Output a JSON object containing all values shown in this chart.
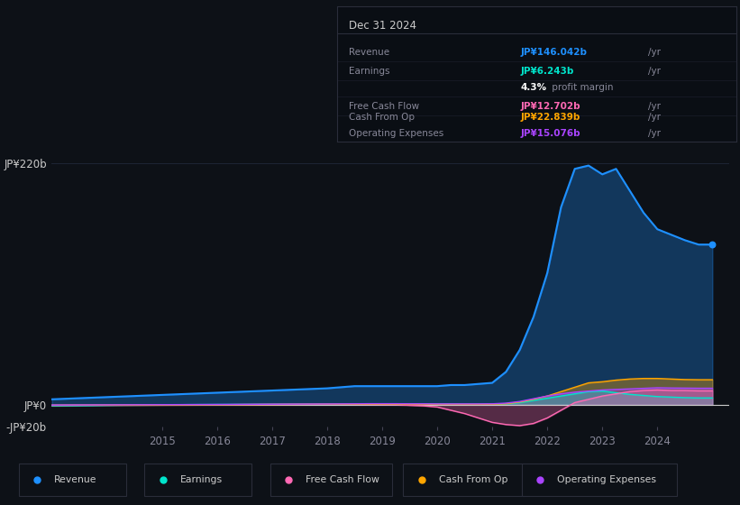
{
  "background_color": "#0d1117",
  "plot_bg_color": "#0d1117",
  "title_box": {
    "date": "Dec 31 2024",
    "rows": [
      {
        "label": "Revenue",
        "value": "JP¥146.042b",
        "unit": "/yr",
        "value_color": "#1e90ff"
      },
      {
        "label": "Earnings",
        "value": "JP¥6.243b",
        "unit": "/yr",
        "value_color": "#00e5cc"
      },
      {
        "label": "",
        "value": "4.3%",
        "unit": "profit margin",
        "value_color": "#ffffff"
      },
      {
        "label": "Free Cash Flow",
        "value": "JP¥12.702b",
        "unit": "/yr",
        "value_color": "#ff69b4"
      },
      {
        "label": "Cash From Op",
        "value": "JP¥22.839b",
        "unit": "/yr",
        "value_color": "#ffa500"
      },
      {
        "label": "Operating Expenses",
        "value": "JP¥15.076b",
        "unit": "/yr",
        "value_color": "#aa44ff"
      }
    ]
  },
  "years": [
    2013.0,
    2013.5,
    2014.0,
    2014.5,
    2015.0,
    2015.5,
    2016.0,
    2016.5,
    2017.0,
    2017.5,
    2018.0,
    2018.25,
    2018.5,
    2018.75,
    2019.0,
    2019.25,
    2019.5,
    2019.75,
    2020.0,
    2020.25,
    2020.5,
    2020.75,
    2021.0,
    2021.25,
    2021.5,
    2021.75,
    2022.0,
    2022.25,
    2022.5,
    2022.75,
    2023.0,
    2023.25,
    2023.5,
    2023.75,
    2024.0,
    2024.25,
    2024.5,
    2024.75,
    2025.0
  ],
  "revenue": [
    5,
    6,
    7,
    8,
    9,
    10,
    11,
    12,
    13,
    14,
    15,
    16,
    17,
    17,
    17,
    17,
    17,
    17,
    17,
    18,
    18,
    19,
    20,
    30,
    50,
    80,
    120,
    180,
    215,
    218,
    210,
    215,
    195,
    175,
    160,
    155,
    150,
    146,
    146
  ],
  "earnings": [
    -1,
    -0.8,
    -0.5,
    -0.3,
    0,
    0.2,
    0.3,
    0.4,
    0.5,
    0.6,
    0.7,
    0.7,
    0.7,
    0.8,
    0.8,
    0.8,
    0.8,
    0.8,
    0.7,
    0.7,
    0.6,
    0.6,
    0.7,
    1.0,
    2.0,
    4.0,
    6.0,
    8.0,
    10.0,
    12.0,
    12.5,
    11.0,
    9.5,
    8.5,
    7.5,
    7.0,
    6.5,
    6.243,
    6.243
  ],
  "free_cash_flow": [
    -0.5,
    -0.4,
    -0.3,
    -0.2,
    -0.1,
    0,
    0.1,
    0.2,
    0.3,
    0.4,
    0.5,
    0.5,
    0.4,
    0.3,
    0.2,
    0.1,
    -0.5,
    -1.0,
    -2,
    -5,
    -8,
    -12,
    -16,
    -18,
    -19,
    -17,
    -12,
    -5,
    2,
    5,
    8,
    10,
    12,
    13,
    13.5,
    13,
    13,
    12.702,
    12.702
  ],
  "cash_from_op": [
    -0.5,
    -0.4,
    -0.3,
    -0.2,
    -0.1,
    0,
    0.1,
    0.2,
    0.3,
    0.4,
    0.5,
    0.5,
    0.5,
    0.5,
    0.5,
    0.5,
    0.4,
    0.4,
    0.4,
    0.4,
    0.4,
    0.4,
    0.5,
    1.0,
    2.5,
    5.0,
    8.0,
    12.0,
    16.0,
    20.0,
    21.0,
    22.5,
    23.5,
    24.0,
    24.0,
    23.5,
    23.0,
    22.839,
    22.839
  ],
  "operating_expenses": [
    -0.3,
    -0.2,
    -0.1,
    0,
    0.1,
    0.2,
    0.3,
    0.4,
    0.5,
    0.6,
    0.7,
    0.8,
    0.9,
    1.0,
    1.0,
    1.0,
    0.9,
    0.9,
    0.8,
    0.8,
    0.8,
    0.8,
    0.9,
    1.5,
    3.0,
    5.5,
    8.0,
    10.0,
    11.5,
    12.5,
    13.5,
    14.0,
    14.5,
    15.0,
    15.5,
    15.3,
    15.2,
    15.076,
    15.076
  ],
  "ylim": [
    -20,
    240
  ],
  "ytick_positions": [
    -20,
    0,
    220
  ],
  "ytick_labels": [
    "-JP¥20b",
    "JP¥0",
    "JP¥220b"
  ],
  "xticks": [
    2015,
    2016,
    2017,
    2018,
    2019,
    2020,
    2021,
    2022,
    2023,
    2024
  ],
  "colors": {
    "revenue": "#1e90ff",
    "earnings": "#00e5cc",
    "free_cash_flow": "#ff69b4",
    "cash_from_op": "#ffa500",
    "operating_expenses": "#aa44ff"
  },
  "legend_items": [
    {
      "label": "Revenue",
      "color": "#1e90ff"
    },
    {
      "label": "Earnings",
      "color": "#00e5cc"
    },
    {
      "label": "Free Cash Flow",
      "color": "#ff69b4"
    },
    {
      "label": "Cash From Op",
      "color": "#ffa500"
    },
    {
      "label": "Operating Expenses",
      "color": "#aa44ff"
    }
  ],
  "grid_color": "#1e2535",
  "zero_line_color": "#cccccc",
  "text_color": "#888899",
  "text_color_light": "#cccccc"
}
